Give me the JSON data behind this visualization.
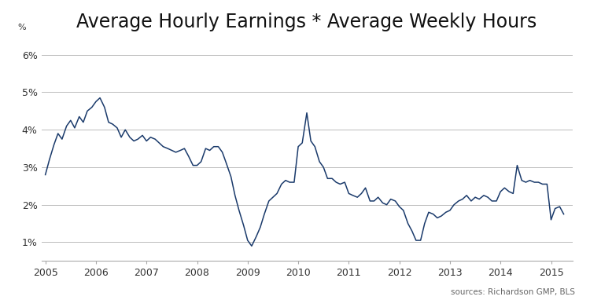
{
  "title": "Average Hourly Earnings * Average Weekly Hours",
  "line_color": "#1a3a6b",
  "background_color": "#ffffff",
  "ylim": [
    0.5,
    6.5
  ],
  "yticks": [
    1,
    2,
    3,
    4,
    5,
    6
  ],
  "ytick_labels": [
    "1%",
    "2%",
    "3%",
    "4%",
    "5%",
    "6%"
  ],
  "ylabel": "%",
  "xlim_start": 2004.92,
  "xlim_end": 2015.42,
  "xticks": [
    2005,
    2006,
    2007,
    2008,
    2009,
    2010,
    2011,
    2012,
    2013,
    2014,
    2015
  ],
  "source_text": "sources: Richardson GMP, BLS",
  "grid_color": "#bbbbbb",
  "title_fontsize": 17,
  "source_fontsize": 7.5,
  "x": [
    2005.0,
    2005.08,
    2005.17,
    2005.25,
    2005.33,
    2005.42,
    2005.5,
    2005.58,
    2005.67,
    2005.75,
    2005.83,
    2005.92,
    2006.0,
    2006.08,
    2006.17,
    2006.25,
    2006.33,
    2006.42,
    2006.5,
    2006.58,
    2006.67,
    2006.75,
    2006.83,
    2006.92,
    2007.0,
    2007.08,
    2007.17,
    2007.25,
    2007.33,
    2007.42,
    2007.5,
    2007.58,
    2007.67,
    2007.75,
    2007.83,
    2007.92,
    2008.0,
    2008.08,
    2008.17,
    2008.25,
    2008.33,
    2008.42,
    2008.5,
    2008.58,
    2008.67,
    2008.75,
    2008.83,
    2008.92,
    2009.0,
    2009.08,
    2009.17,
    2009.25,
    2009.33,
    2009.42,
    2009.5,
    2009.58,
    2009.67,
    2009.75,
    2009.83,
    2009.92,
    2010.0,
    2010.08,
    2010.17,
    2010.25,
    2010.33,
    2010.42,
    2010.5,
    2010.58,
    2010.67,
    2010.75,
    2010.83,
    2010.92,
    2011.0,
    2011.08,
    2011.17,
    2011.25,
    2011.33,
    2011.42,
    2011.5,
    2011.58,
    2011.67,
    2011.75,
    2011.83,
    2011.92,
    2012.0,
    2012.08,
    2012.17,
    2012.25,
    2012.33,
    2012.42,
    2012.5,
    2012.58,
    2012.67,
    2012.75,
    2012.83,
    2012.92,
    2013.0,
    2013.08,
    2013.17,
    2013.25,
    2013.33,
    2013.42,
    2013.5,
    2013.58,
    2013.67,
    2013.75,
    2013.83,
    2013.92,
    2014.0,
    2014.08,
    2014.17,
    2014.25,
    2014.33,
    2014.42,
    2014.5,
    2014.58,
    2014.67,
    2014.75,
    2014.83,
    2014.92,
    2015.0,
    2015.08,
    2015.17,
    2015.25
  ],
  "y": [
    2.8,
    3.2,
    3.6,
    3.9,
    3.75,
    4.1,
    4.25,
    4.05,
    4.35,
    4.2,
    4.5,
    4.6,
    4.75,
    4.85,
    4.6,
    4.2,
    4.15,
    4.05,
    3.8,
    4.0,
    3.8,
    3.7,
    3.75,
    3.85,
    3.7,
    3.8,
    3.75,
    3.65,
    3.55,
    3.5,
    3.45,
    3.4,
    3.45,
    3.5,
    3.3,
    3.05,
    3.05,
    3.15,
    3.5,
    3.45,
    3.55,
    3.55,
    3.4,
    3.1,
    2.75,
    2.25,
    1.85,
    1.45,
    1.05,
    0.9,
    1.15,
    1.4,
    1.75,
    2.1,
    2.2,
    2.3,
    2.55,
    2.65,
    2.6,
    2.6,
    3.55,
    3.65,
    4.45,
    3.7,
    3.55,
    3.15,
    3.0,
    2.7,
    2.7,
    2.6,
    2.55,
    2.6,
    2.3,
    2.25,
    2.2,
    2.3,
    2.45,
    2.1,
    2.1,
    2.2,
    2.05,
    2.0,
    2.15,
    2.1,
    1.95,
    1.85,
    1.5,
    1.3,
    1.05,
    1.05,
    1.5,
    1.8,
    1.75,
    1.65,
    1.7,
    1.8,
    1.85,
    2.0,
    2.1,
    2.15,
    2.25,
    2.1,
    2.2,
    2.15,
    2.25,
    2.2,
    2.1,
    2.1,
    2.35,
    2.45,
    2.35,
    2.3,
    3.05,
    2.65,
    2.6,
    2.65,
    2.6,
    2.6,
    2.55,
    2.55,
    1.6,
    1.9,
    1.95,
    1.75
  ]
}
